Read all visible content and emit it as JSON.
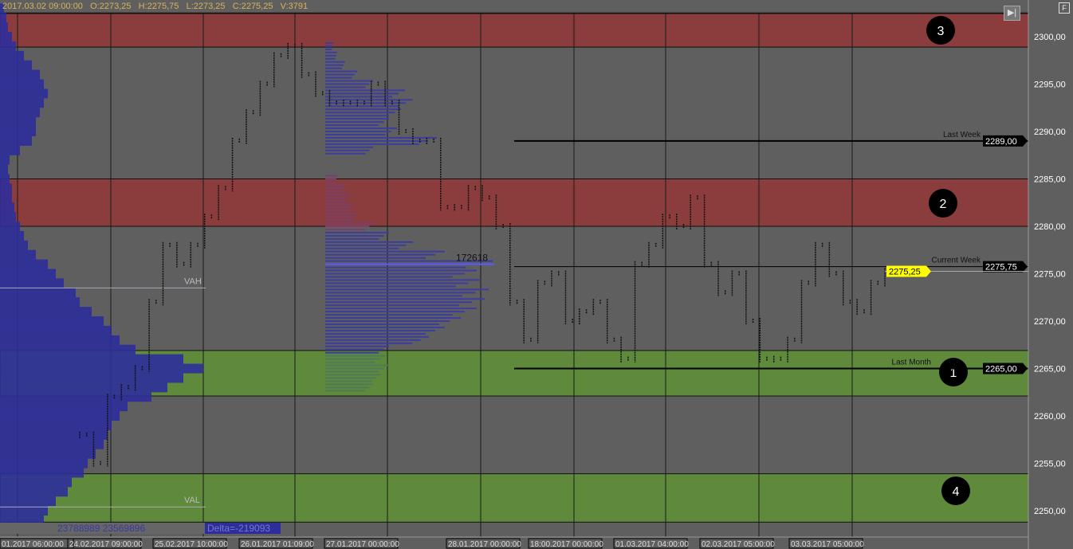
{
  "header": {
    "date": "2017.03.02 09:00:00",
    "open": "O:2273,25",
    "high": "H:2275,75",
    "low": "L:2273,25",
    "close": "C:2275,25",
    "volume": "V:3791"
  },
  "buttons": {
    "f_label": "F",
    "skip_icon": "skip-forward-icon"
  },
  "colors": {
    "background": "#5f5f5f",
    "supply_zone": "#8b3c3c",
    "demand_zone": "#5f8a3c",
    "profile": "#2e2e9a",
    "current_price": "#ffff00"
  },
  "chart_data": {
    "type": "line",
    "ylim": [
      2248.5,
      2305
    ],
    "y_ticks": [
      "2300,00",
      "2295,00",
      "2290,00",
      "2285,00",
      "2280,00",
      "2275,00",
      "2270,00",
      "2265,00",
      "2260,00",
      "2255,00",
      "2250,00"
    ],
    "y_tick_values": [
      2300,
      2295,
      2290,
      2285,
      2280,
      2275,
      2270,
      2265,
      2260,
      2255,
      2250
    ],
    "x_ticks": [
      "01.2017 06:00:00",
      "24.02.2017 09:00:00",
      "25.02.2017 10:00:00",
      "26.01.2017 01:09:00",
      "27.01.2017 00:00:00",
      "28.01.2017 00:00:00",
      "18:00.2017 00:00:00",
      "01.03.2017 04:00:00",
      "02.03.2017 05:00:00",
      "03.03.2017 05:00:00"
    ],
    "zones": [
      {
        "label": "3",
        "type": "supply",
        "from": 2298.9,
        "to": 2302.5
      },
      {
        "label": "2",
        "type": "supply",
        "from": 2280,
        "to": 2285
      },
      {
        "label": "1",
        "type": "demand",
        "from": 2262.1,
        "to": 2266.9
      },
      {
        "label": "4",
        "type": "demand",
        "from": 2248.8,
        "to": 2253.9
      }
    ],
    "levels": [
      {
        "label": "Last Week",
        "value": 2289,
        "tag": "2289,00"
      },
      {
        "label": "Current Week",
        "value": 2275.75,
        "tag": "2275,75"
      },
      {
        "label": "Last Month",
        "value": 2265,
        "tag": "2265,00"
      }
    ],
    "current_price": {
      "value": 2275.25,
      "tag": "2275,25"
    },
    "price_series": [
      2258,
      2255,
      2262,
      2263,
      2265,
      2272,
      2278,
      2276,
      2278,
      2281,
      2284,
      2289,
      2292,
      2295,
      2298,
      2299,
      2296,
      2294,
      2293,
      2293,
      2293,
      2295,
      2293,
      2290,
      2289,
      2289,
      2282,
      2282,
      2284,
      2283,
      2280,
      2272,
      2268,
      2274,
      2275,
      2270,
      2271,
      2272,
      2268,
      2266,
      2276,
      2278,
      2281,
      2280,
      2283,
      2276,
      2273,
      2275,
      2270,
      2266,
      2266,
      2268,
      2274,
      2278,
      2275,
      2272,
      2271,
      2274,
      2275.25
    ],
    "composite_profile": {
      "prices": [
        2249,
        2250,
        2251,
        2252,
        2253,
        2254,
        2255,
        2256,
        2257,
        2258,
        2259,
        2260,
        2261,
        2262,
        2263,
        2264,
        2265,
        2266,
        2267,
        2268,
        2269,
        2270,
        2271,
        2272,
        2273,
        2274,
        2275,
        2276,
        2277,
        2278,
        2279,
        2280,
        2281,
        2282,
        2283,
        2284,
        2285,
        2286,
        2287,
        2288,
        2289,
        2290,
        2291,
        2292,
        2293,
        2294,
        2295,
        2296,
        2297,
        2298,
        2299,
        2300,
        2301,
        2302,
        2303
      ],
      "volumes": [
        55,
        60,
        70,
        85,
        90,
        105,
        110,
        120,
        130,
        135,
        140,
        150,
        160,
        190,
        210,
        230,
        255,
        230,
        170,
        150,
        140,
        130,
        115,
        100,
        95,
        80,
        70,
        60,
        45,
        35,
        30,
        25,
        20,
        18,
        15,
        15,
        12,
        10,
        12,
        25,
        40,
        45,
        45,
        50,
        55,
        60,
        55,
        50,
        40,
        30,
        20,
        15,
        10,
        8,
        5
      ],
      "vah": "VAH",
      "vah_value": 2273.5,
      "val": "VAL",
      "val_value": 2250.4,
      "totals": "23788989 23569896",
      "delta": "Delta=-219093"
    },
    "session_profile": {
      "prices": [
        2263,
        2264,
        2265,
        2266,
        2267,
        2268,
        2269,
        2270,
        2271,
        2272,
        2273,
        2274,
        2275,
        2276,
        2277,
        2278,
        2279,
        2280,
        2281,
        2282,
        2283,
        2284,
        2285,
        2288,
        2289,
        2290,
        2291,
        2292,
        2293,
        2294,
        2295,
        2296,
        2297,
        2298,
        2299
      ],
      "volumes": [
        60,
        70,
        80,
        75,
        80,
        130,
        150,
        170,
        190,
        200,
        205,
        195,
        190,
        210,
        150,
        110,
        80,
        60,
        40,
        35,
        30,
        25,
        15,
        60,
        140,
        90,
        80,
        95,
        110,
        100,
        60,
        40,
        25,
        15,
        10
      ],
      "poc_label": "172618",
      "poc_value": 2276
    }
  }
}
